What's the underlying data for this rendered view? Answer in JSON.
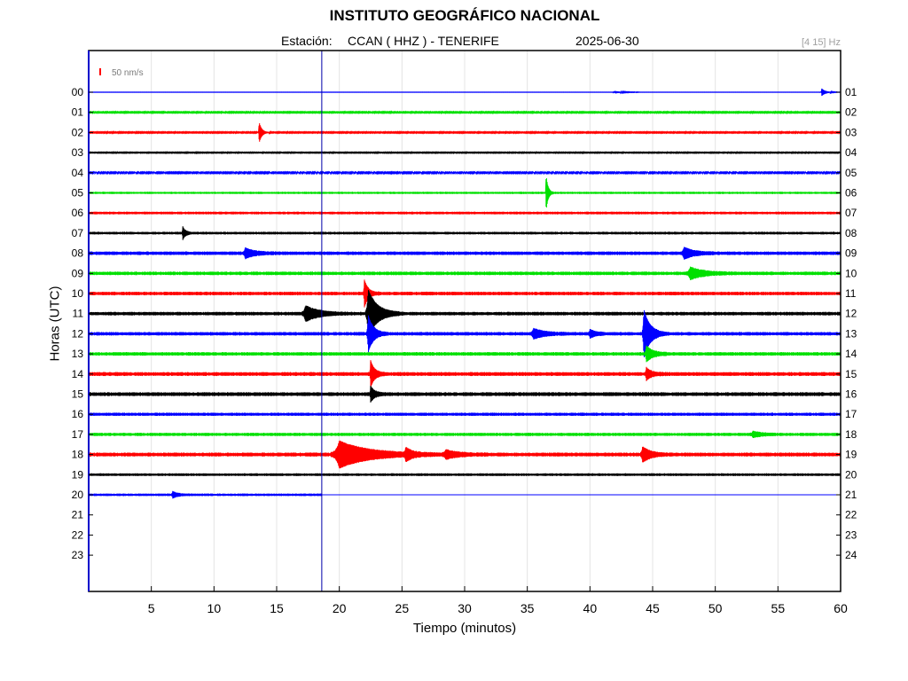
{
  "header": {
    "title": "INSTITUTO GEOGRÁFICO NACIONAL",
    "station_label": "Estación:",
    "station": "CCAN ( HHZ ) - TENERIFE",
    "date": "2025-06-30",
    "filter": "[4 15] Hz"
  },
  "chart_data": {
    "type": "line",
    "title": "INSTITUTO GEOGRÁFICO NACIONAL",
    "xlabel": "Tiempo (minutos)",
    "ylabel": "Horas (UTC)",
    "xlim": [
      0,
      60
    ],
    "x_ticks": [
      "5",
      "10",
      "15",
      "20",
      "25",
      "30",
      "35",
      "40",
      "45",
      "50",
      "55",
      "60"
    ],
    "left_labels": [
      "00",
      "01",
      "02",
      "03",
      "04",
      "05",
      "06",
      "07",
      "08",
      "09",
      "10",
      "11",
      "12",
      "13",
      "14",
      "15",
      "16",
      "17",
      "18",
      "19",
      "20",
      "21",
      "22",
      "23"
    ],
    "right_labels": [
      "01",
      "02",
      "03",
      "04",
      "05",
      "06",
      "07",
      "08",
      "09",
      "10",
      "11",
      "12",
      "13",
      "14",
      "15",
      "16",
      "17",
      "18",
      "19",
      "20",
      "21",
      "22",
      "23",
      "24"
    ],
    "scale_label": "50 nm/s",
    "current_time_minute": 18.6,
    "last_hour_row": 20,
    "colors": [
      "#0000ff",
      "#00e000",
      "#ff0000",
      "#000000"
    ],
    "grid": true,
    "traces": [
      {
        "hour": "00",
        "noise": 0.15,
        "events": [
          {
            "t": 58.5,
            "a": 4,
            "w": 0.3
          },
          {
            "t": 42,
            "a": 1.2,
            "w": 0.5
          }
        ]
      },
      {
        "hour": "01",
        "noise": 0.5,
        "events": []
      },
      {
        "hour": "02",
        "noise": 0.5,
        "events": [
          {
            "t": 13.6,
            "a": 12,
            "w": 0.2
          }
        ]
      },
      {
        "hour": "03",
        "noise": 0.4,
        "events": []
      },
      {
        "hour": "04",
        "noise": 0.6,
        "events": []
      },
      {
        "hour": "05",
        "noise": 1.2,
        "events": [
          {
            "t": 36.5,
            "a": 20,
            "w": 0.15
          }
        ]
      },
      {
        "hour": "06",
        "noise": 1.5,
        "events": []
      },
      {
        "hour": "07",
        "noise": 1.5,
        "events": [
          {
            "t": 7.5,
            "a": 7,
            "w": 0.2
          }
        ]
      },
      {
        "hour": "08",
        "noise": 2,
        "events": [
          {
            "t": 12.5,
            "a": 5,
            "w": 0.7
          },
          {
            "t": 47.5,
            "a": 6,
            "w": 0.7
          }
        ]
      },
      {
        "hour": "09",
        "noise": 2,
        "events": [
          {
            "t": 48,
            "a": 6,
            "w": 1
          }
        ]
      },
      {
        "hour": "10",
        "noise": 2,
        "events": [
          {
            "t": 22,
            "a": 14,
            "w": 0.3
          }
        ]
      },
      {
        "hour": "11",
        "noise": 2,
        "events": [
          {
            "t": 17.3,
            "a": 8,
            "w": 1
          },
          {
            "t": 22.3,
            "a": 26,
            "w": 0.7
          }
        ]
      },
      {
        "hour": "12",
        "noise": 2,
        "events": [
          {
            "t": 22.3,
            "a": 20,
            "w": 0.4
          },
          {
            "t": 35.5,
            "a": 5,
            "w": 0.8
          },
          {
            "t": 40,
            "a": 4,
            "w": 0.4
          },
          {
            "t": 44.3,
            "a": 26,
            "w": 0.5
          }
        ]
      },
      {
        "hour": "13",
        "noise": 2,
        "events": [
          {
            "t": 44.5,
            "a": 8,
            "w": 0.5
          }
        ]
      },
      {
        "hour": "14",
        "noise": 2.2,
        "events": [
          {
            "t": 22.5,
            "a": 14,
            "w": 0.3
          },
          {
            "t": 44.5,
            "a": 6,
            "w": 0.4
          }
        ]
      },
      {
        "hour": "15",
        "noise": 2.2,
        "events": [
          {
            "t": 22.5,
            "a": 8,
            "w": 0.3
          }
        ]
      },
      {
        "hour": "16",
        "noise": 1.8,
        "events": []
      },
      {
        "hour": "17",
        "noise": 1.8,
        "events": [
          {
            "t": 53,
            "a": 3,
            "w": 0.6
          }
        ]
      },
      {
        "hour": "18",
        "noise": 2.2,
        "events": [
          {
            "t": 20,
            "a": 14,
            "w": 2.2
          },
          {
            "t": 25.3,
            "a": 6,
            "w": 0.5
          },
          {
            "t": 28.5,
            "a": 4,
            "w": 1
          },
          {
            "t": 44.2,
            "a": 8,
            "w": 0.6
          }
        ]
      },
      {
        "hour": "19",
        "noise": 1.5,
        "events": []
      },
      {
        "hour": "20",
        "noise": 1.4,
        "events": [
          {
            "t": 6.7,
            "a": 3,
            "w": 0.4
          }
        ]
      }
    ]
  }
}
